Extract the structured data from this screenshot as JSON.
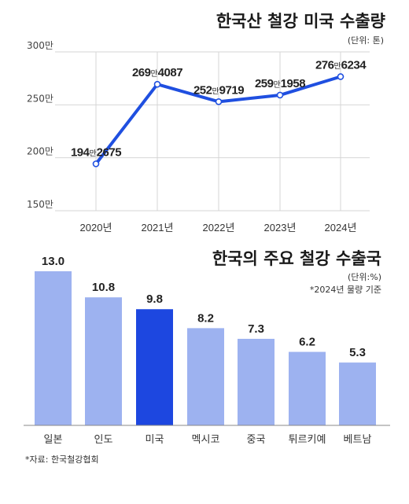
{
  "chart_data": [
    {
      "type": "line",
      "title": "한국산 철강 미국 수출량",
      "unit_note": "(단위: 톤)",
      "x": [
        "2020년",
        "2021년",
        "2022년",
        "2023년",
        "2024년"
      ],
      "values": [
        1942675,
        2694087,
        2529719,
        2591958,
        2766234
      ],
      "labels": [
        {
          "main": "194",
          "man": "만",
          "rest": "2675"
        },
        {
          "main": "269",
          "man": "만",
          "rest": "4087"
        },
        {
          "main": "252",
          "man": "만",
          "rest": "9719"
        },
        {
          "main": "259",
          "man": "만",
          "rest": "1958"
        },
        {
          "main": "276",
          "man": "만",
          "rest": "6234"
        }
      ],
      "y_ticks": [
        {
          "value": 3000000,
          "label": "300만"
        },
        {
          "value": 2500000,
          "label": "250만"
        },
        {
          "value": 2000000,
          "label": "200만"
        },
        {
          "value": 1500000,
          "label": "150만"
        }
      ],
      "ylim": [
        1500000,
        3000000
      ],
      "line_color": "#1f4fe0"
    },
    {
      "type": "bar",
      "title": "한국의 주요 철강 수출국",
      "unit_note": "(단위:%)",
      "note": "*2024년 물량 기준",
      "categories": [
        "일본",
        "인도",
        "미국",
        "멕시코",
        "중국",
        "튀르키예",
        "베트남"
      ],
      "values": [
        13.0,
        10.8,
        9.8,
        8.2,
        7.3,
        6.2,
        5.3
      ],
      "value_labels": [
        "13.0",
        "10.8",
        "9.8",
        "8.2",
        "7.3",
        "6.2",
        "5.3"
      ],
      "highlight_index": 2,
      "bar_color": "#9db2f0",
      "highlight_color": "#1d47e0",
      "ylim": [
        0,
        13.0
      ]
    }
  ],
  "source": "*자료: 한국철강협회"
}
